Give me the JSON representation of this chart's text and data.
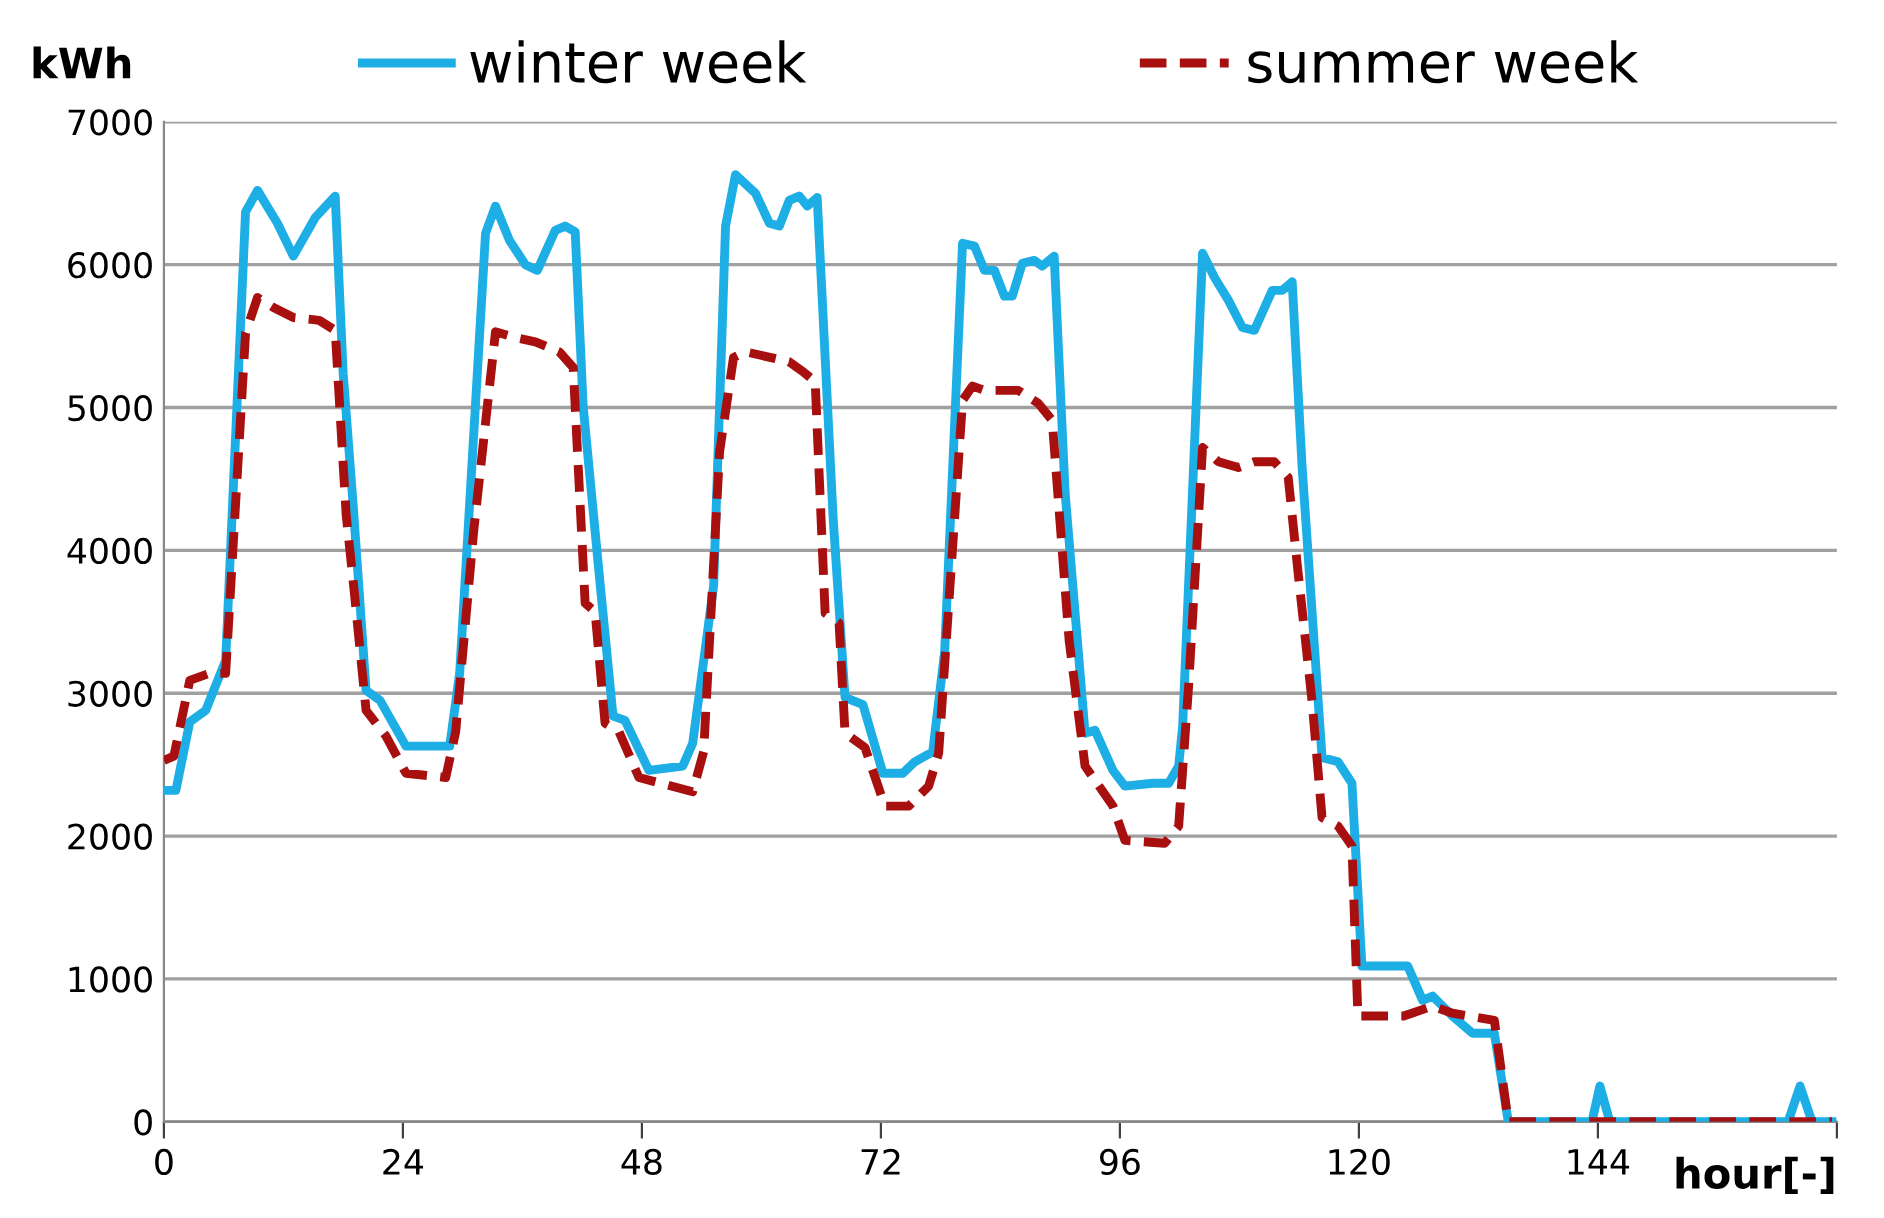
{
  "chart_data": {
    "type": "line",
    "ylabel": "kWh",
    "xlabel": "hour[-]",
    "xlim": [
      0,
      168
    ],
    "xticks": [
      0,
      24,
      48,
      72,
      96,
      120,
      144,
      {
        "value": 168,
        "label": null
      }
    ],
    "ylim": [
      0,
      7000
    ],
    "yticks": [
      0,
      1000,
      2000,
      3000,
      4000,
      5000,
      6000,
      7000
    ],
    "grid": "y",
    "legend": "top",
    "marker": "none",
    "series": [
      {
        "name": "winter week",
        "color": "#1eaee6",
        "line_style": "solid",
        "x": [
          0,
          1.2,
          2.6,
          4.2,
          6.2,
          8.2,
          9.4,
          11.4,
          13,
          15.2,
          17.2,
          18,
          19,
          20.3,
          21.7,
          24.3,
          28.7,
          29.7,
          32.3,
          33.3,
          34.7,
          36.3,
          37.5,
          39.3,
          40.3,
          41.3,
          42.1,
          43.7,
          45.1,
          46.3,
          48.7,
          52.1,
          53.1,
          55.2,
          56.4,
          57.4,
          59.4,
          60.8,
          61.8,
          62.8,
          63.8,
          64.6,
          65.6,
          67.2,
          68.4,
          70.2,
          72.2,
          74.2,
          75.4,
          77.2,
          78.4,
          80.2,
          81.4,
          82.4,
          83.4,
          84.4,
          85.2,
          86.2,
          87.4,
          88.2,
          89.4,
          90.5,
          92.5,
          93.5,
          95.3,
          96.5,
          99.3,
          100.9,
          101.9,
          102.3,
          104.3,
          105.5,
          106.9,
          108.3,
          109.5,
          111.3,
          112.3,
          113.3,
          114.3,
          116.3,
          117.9,
          119.3,
          120.3,
          124.9,
          126.4,
          127.4,
          129.4,
          131.4,
          133.6,
          135,
          143.4,
          144.2,
          145.2,
          163.1,
          164.3,
          165.5,
          167.5
        ],
        "values": [
          2320,
          2320,
          2800,
          2880,
          3230,
          6370,
          6520,
          6290,
          6060,
          6330,
          6480,
          5240,
          4320,
          3020,
          2950,
          2630,
          2630,
          3140,
          6220,
          6410,
          6170,
          6000,
          5960,
          6240,
          6270,
          6230,
          5010,
          3840,
          2840,
          2810,
          2460,
          2490,
          2650,
          3750,
          6270,
          6630,
          6500,
          6290,
          6270,
          6450,
          6480,
          6410,
          6470,
          4230,
          2970,
          2920,
          2440,
          2440,
          2520,
          2590,
          3290,
          6150,
          6130,
          5960,
          5960,
          5780,
          5780,
          6010,
          6030,
          5990,
          6060,
          4400,
          2720,
          2740,
          2460,
          2350,
          2370,
          2370,
          2490,
          2770,
          6080,
          5910,
          5750,
          5560,
          5540,
          5820,
          5820,
          5880,
          4580,
          2550,
          2520,
          2370,
          1090,
          1090,
          850,
          880,
          740,
          620,
          620,
          0,
          0,
          250,
          0,
          0,
          250,
          0,
          0
        ]
      },
      {
        "name": "summer week",
        "color": "#a81010",
        "line_style": "dashed",
        "x": [
          0,
          1,
          2.6,
          4.6,
          6.2,
          8.2,
          9.4,
          11,
          13,
          15.6,
          17.2,
          18.3,
          19.1,
          20.3,
          22.3,
          24.3,
          28.3,
          29.3,
          31.1,
          33.3,
          35.3,
          37.3,
          39.7,
          41.1,
          42.3,
          43.3,
          44.3,
          45.7,
          47.7,
          53.1,
          54.2,
          55.8,
          57.2,
          58.4,
          62.8,
          64.2,
          65.4,
          66.4,
          67.8,
          68.4,
          70.4,
          72.4,
          74.8,
          76.8,
          77.8,
          80.2,
          81.2,
          82.4,
          85.8,
          87.8,
          89.2,
          90.9,
          92.5,
          95.3,
          96.5,
          100.5,
          101.9,
          102.9,
          104.3,
          105.9,
          107.9,
          109.5,
          111.5,
          112.9,
          113.9,
          115.3,
          116.3,
          117.9,
          119.3,
          119.9,
          124.5,
          127.4,
          129.4,
          133.6,
          135,
          167.5
        ],
        "values": [
          2530,
          2560,
          3090,
          3140,
          3140,
          5520,
          5770,
          5700,
          5630,
          5610,
          5540,
          4250,
          3720,
          2880,
          2700,
          2440,
          2410,
          2730,
          4130,
          5530,
          5490,
          5460,
          5390,
          5280,
          3630,
          3570,
          2790,
          2730,
          2410,
          2310,
          2590,
          4690,
          5350,
          5390,
          5320,
          5250,
          5180,
          3560,
          3490,
          2720,
          2620,
          2210,
          2210,
          2350,
          2580,
          5050,
          5150,
          5120,
          5120,
          5030,
          4910,
          3370,
          2490,
          2210,
          1970,
          1950,
          2070,
          3050,
          4720,
          4620,
          4580,
          4620,
          4620,
          4510,
          3840,
          2940,
          2130,
          2070,
          1930,
          740,
          740,
          810,
          760,
          710,
          0,
          0
        ]
      }
    ]
  }
}
